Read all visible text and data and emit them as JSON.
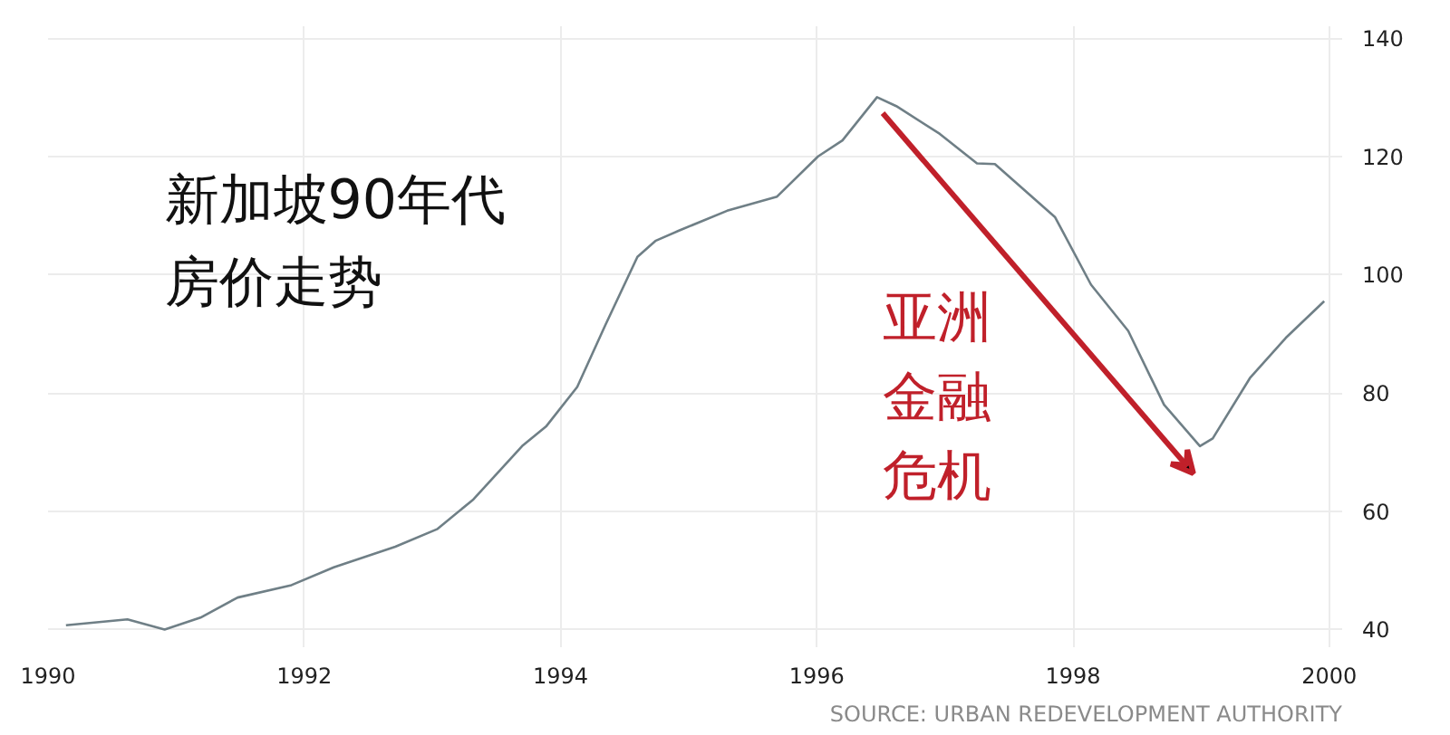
{
  "chart_data": {
    "type": "line",
    "title": "新加坡90年代房价走势",
    "annotations": [
      "亚洲金融危机",
      "SOURCE: URBAN REDEVELOPMENT AUTHORITY"
    ],
    "x": [
      1990.14,
      1990.62,
      1990.91,
      1991.19,
      1991.48,
      1991.9,
      1992.23,
      1992.71,
      1993.04,
      1993.32,
      1993.7,
      1993.89,
      1994.13,
      1994.35,
      1994.6,
      1994.74,
      1994.92,
      1995.3,
      1995.69,
      1996.01,
      1996.2,
      1996.47,
      1996.62,
      1996.96,
      1997.25,
      1997.39,
      1997.86,
      1998.14,
      1998.43,
      1998.71,
      1998.99,
      1999.09,
      1999.38,
      1999.66,
      1999.96
    ],
    "series": [
      {
        "color": "#6f7f86",
        "values": [
          40.7,
          41.7,
          40,
          42,
          45.4,
          47.5,
          50.5,
          54,
          57,
          62,
          71,
          74.4,
          81,
          91.5,
          103,
          105.7,
          107.4,
          110.8,
          113.2,
          120,
          122.7,
          130,
          128.5,
          123.8,
          118.8,
          118.7,
          109.7,
          98.3,
          90.5,
          78,
          71,
          72.3,
          82.5,
          89.3,
          95.5
        ]
      }
    ],
    "xlim": [
      1990,
      2000.1
    ],
    "xticks": [
      1990,
      1992,
      1994,
      1996,
      1998,
      2000
    ],
    "ylim": [
      37,
      142
    ],
    "yticks": [
      40,
      60,
      80,
      100,
      120,
      140
    ],
    "grid": true,
    "marker": "none",
    "line_style": "solid"
  }
}
